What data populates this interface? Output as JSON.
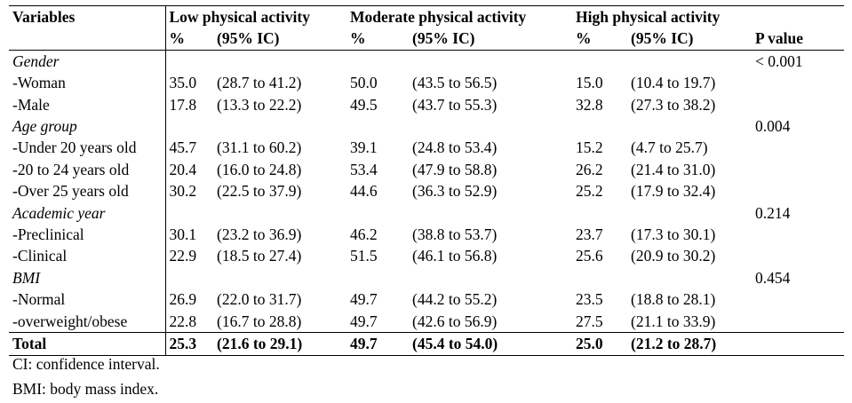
{
  "header": {
    "variables": "Variables",
    "groups": [
      "Low physical activity",
      "Moderate physical activity",
      "High physical activity"
    ],
    "pct": "%",
    "ci": "(95% IC)",
    "pvalue": "P value"
  },
  "rows": [
    {
      "label": "Gender",
      "group": true,
      "pvalue": "< 0.001"
    },
    {
      "label": "-Woman",
      "low": "35.0",
      "low_ci": "(28.7 to 41.2)",
      "mod": "50.0",
      "mod_ci": "(43.5 to 56.5)",
      "high": "15.0",
      "high_ci": "(10.4 to 19.7)"
    },
    {
      "label": "-Male",
      "low": "17.8",
      "low_ci": "(13.3 to 22.2)",
      "mod": "49.5",
      "mod_ci": "(43.7 to 55.3)",
      "high": "32.8",
      "high_ci": "(27.3 to 38.2)"
    },
    {
      "label": "Age group",
      "group": true,
      "pvalue": "0.004"
    },
    {
      "label": "-Under 20 years old",
      "low": "45.7",
      "low_ci": "(31.1 to 60.2)",
      "mod": "39.1",
      "mod_ci": "(24.8 to 53.4)",
      "high": "15.2",
      "high_ci": "(4.7 to 25.7)"
    },
    {
      "label": "-20 to 24 years old",
      "low": "20.4",
      "low_ci": "(16.0 to 24.8)",
      "mod": "53.4",
      "mod_ci": "(47.9 to 58.8)",
      "high": "26.2",
      "high_ci": "(21.4 to 31.0)"
    },
    {
      "label": "-Over 25 years old",
      "low": "30.2",
      "low_ci": "(22.5 to 37.9)",
      "mod": "44.6",
      "mod_ci": "(36.3 to 52.9)",
      "high": "25.2",
      "high_ci": "(17.9 to 32.4)"
    },
    {
      "label": "Academic year",
      "group": true,
      "pvalue": "0.214"
    },
    {
      "label": "-Preclinical",
      "low": "30.1",
      "low_ci": "(23.2 to 36.9)",
      "mod": "46.2",
      "mod_ci": "(38.8 to 53.7)",
      "high": "23.7",
      "high_ci": "(17.3 to 30.1)"
    },
    {
      "label": "-Clinical",
      "low": "22.9",
      "low_ci": "(18.5 to 27.4)",
      "mod": "51.5",
      "mod_ci": "(46.1 to 56.8)",
      "high": "25.6",
      "high_ci": "(20.9 to 30.2)"
    },
    {
      "label": "BMI",
      "group": true,
      "pvalue": "0.454"
    },
    {
      "label": "-Normal",
      "low": "26.9",
      "low_ci": "(22.0 to 31.7)",
      "mod": "49.7",
      "mod_ci": "(44.2 to 55.2)",
      "high": "23.5",
      "high_ci": "(18.8 to 28.1)"
    },
    {
      "label": "-overweight/obese",
      "low": "22.8",
      "low_ci": "(16.7 to 28.8)",
      "mod": "49.7",
      "mod_ci": "(42.6 to 56.9)",
      "high": "27.5",
      "high_ci": "(21.1 to 33.9)"
    }
  ],
  "total": {
    "label": "Total",
    "low": "25.3",
    "low_ci": "(21.6 to 29.1)",
    "mod": "49.7",
    "mod_ci": "(45.4 to 54.0)",
    "high": "25.0",
    "high_ci": "(21.2 to 28.7)"
  },
  "footnotes": [
    "CI: confidence interval.",
    "BMI: body mass index."
  ]
}
